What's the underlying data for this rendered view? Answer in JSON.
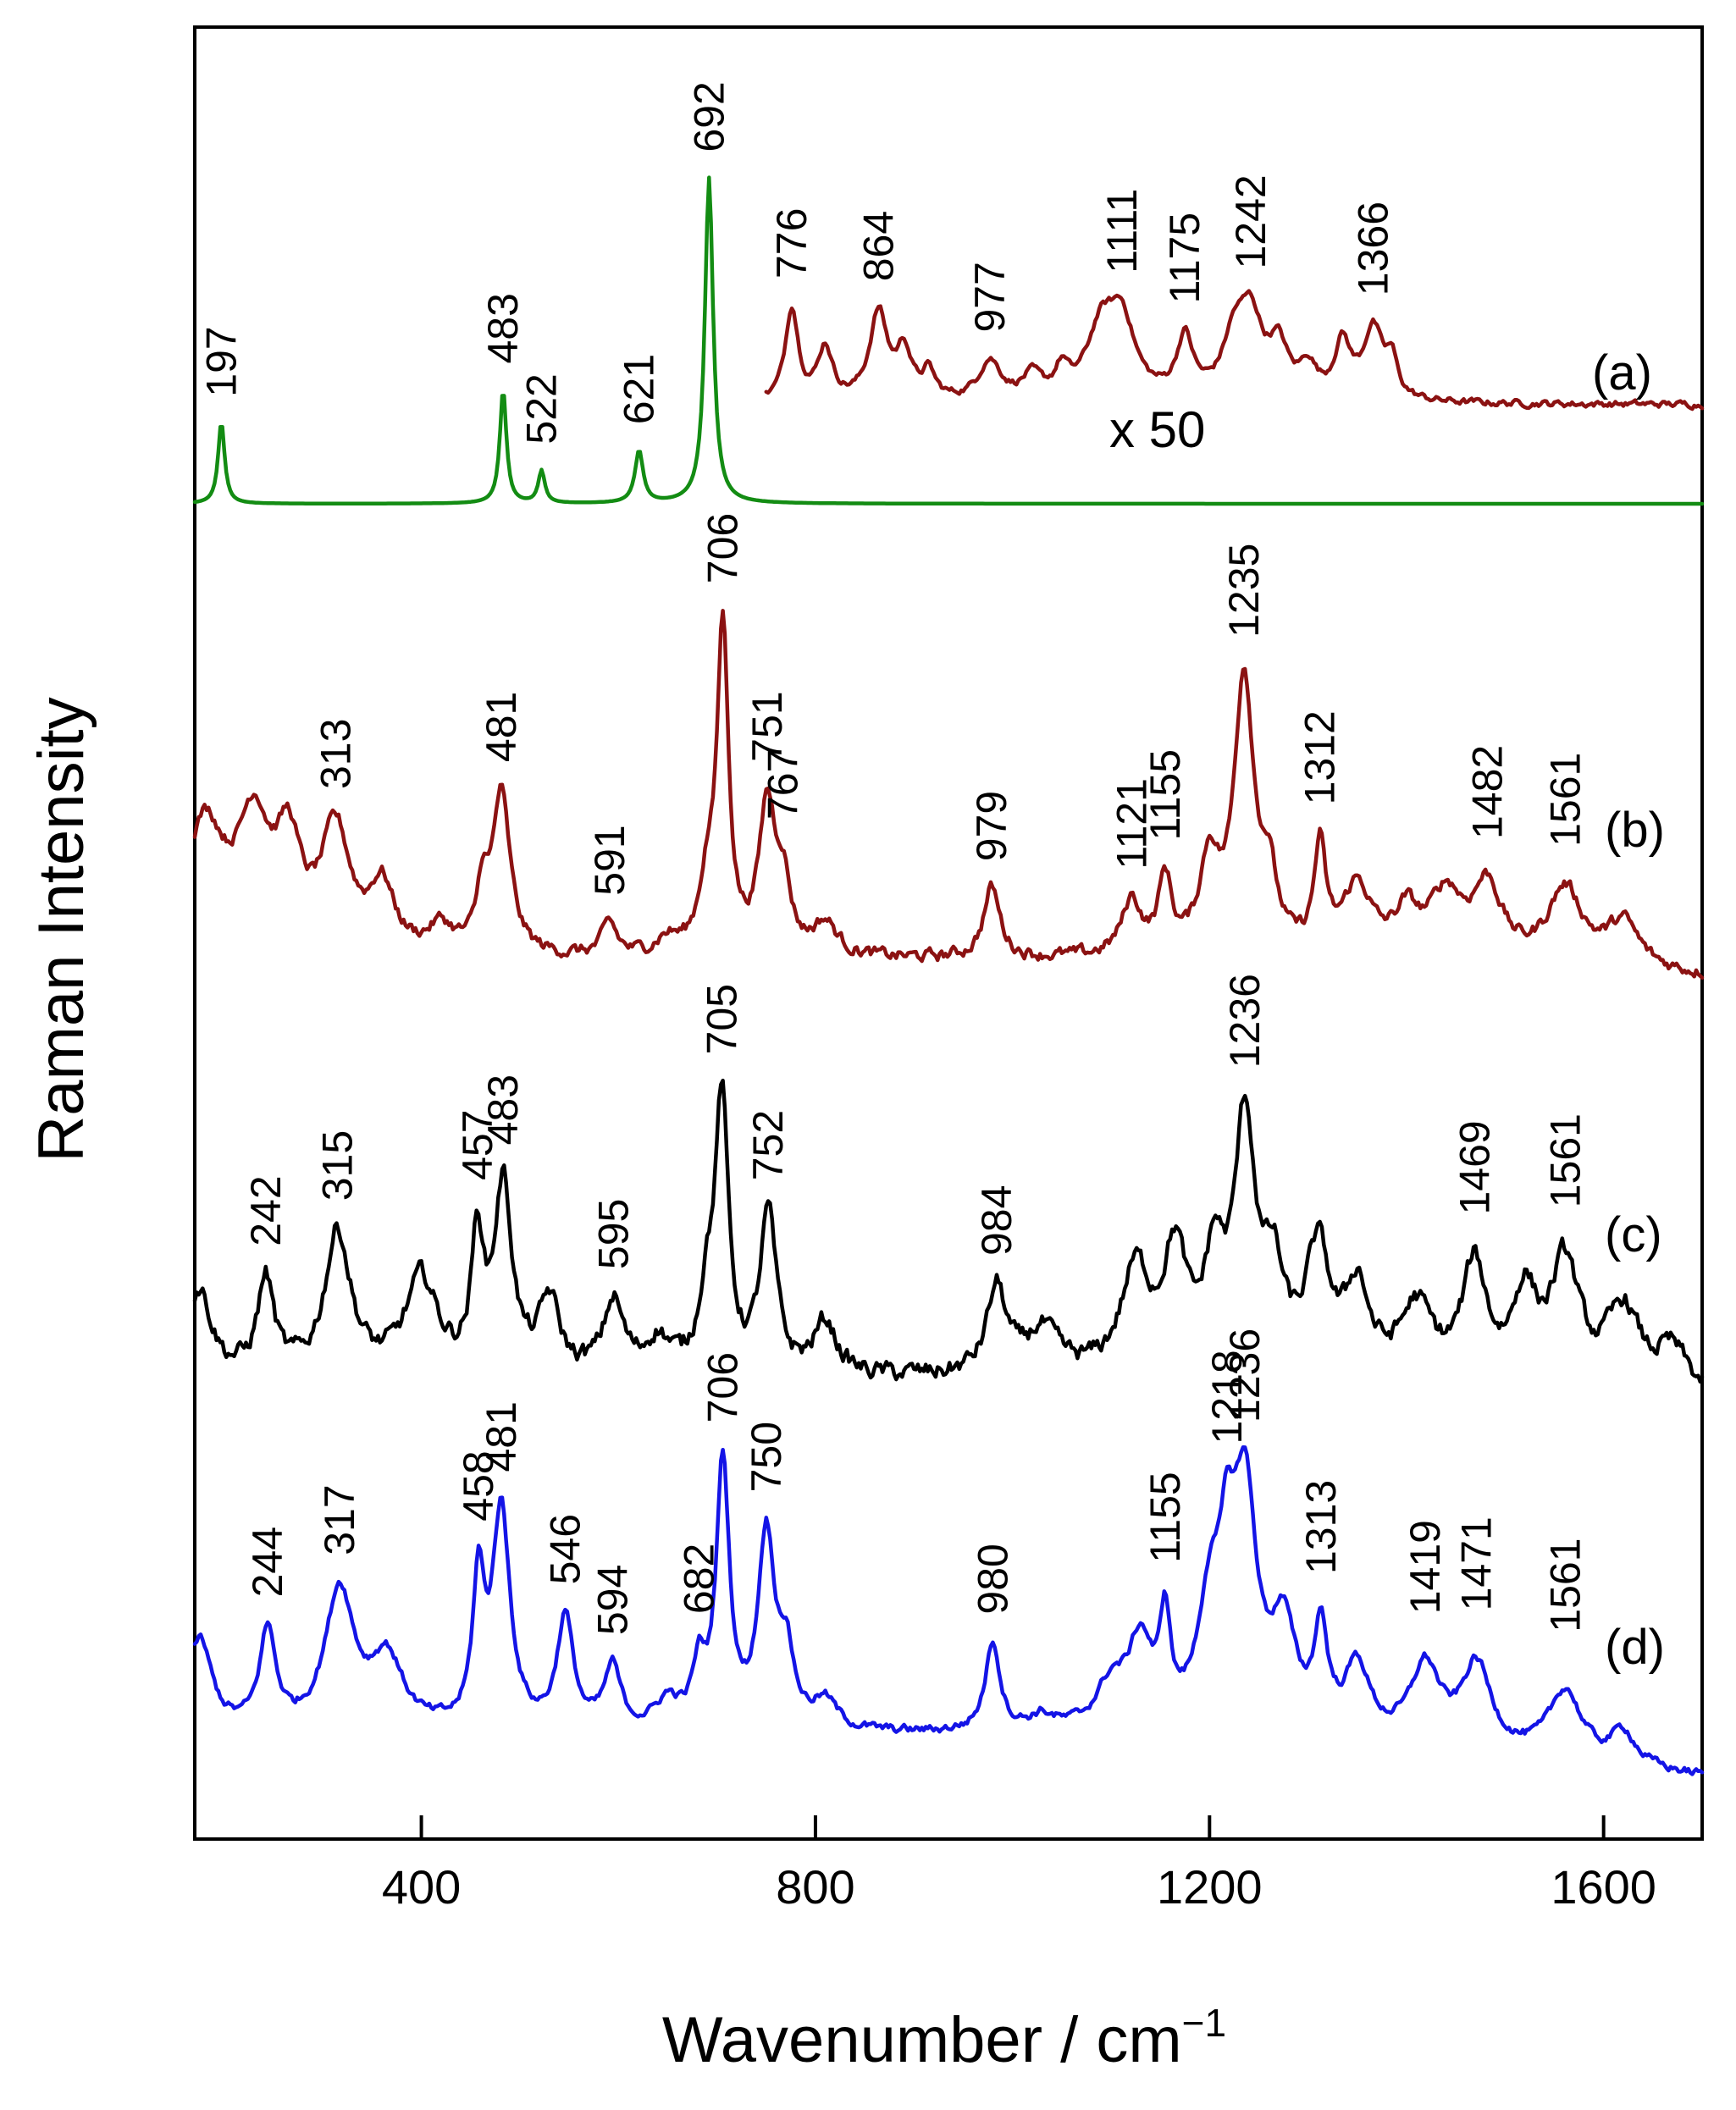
{
  "chart_data": {
    "type": "line",
    "title": "",
    "xlabel": "Wavenumber / cm",
    "xlabel_superscript": "−1",
    "ylabel": "Raman Intensity",
    "xlim": [
      170,
      1700
    ],
    "xticks": [
      400,
      800,
      1200,
      1600
    ],
    "xtick_labels": [
      "400",
      "800",
      "1200",
      "1600"
    ],
    "grid": false,
    "y_units": "arbitrary, stacked traces",
    "annotations": [
      {
        "text": "x 50",
        "near_trace": "(a)",
        "x": 1000
      }
    ],
    "series": [
      {
        "name": "(a)",
        "color": "#138c13",
        "baseline": 0.0,
        "peaks": [
          {
            "x": 197,
            "h": 0.25,
            "w": 4
          },
          {
            "x": 483,
            "h": 0.35,
            "w": 4
          },
          {
            "x": 522,
            "h": 0.1,
            "w": 4
          },
          {
            "x": 621,
            "h": 0.16,
            "w": 5
          },
          {
            "x": 692,
            "h": 1.0,
            "w": 5
          }
        ],
        "peak_labels": [
          "197",
          "483",
          "522",
          "621",
          "692"
        ],
        "xmin": 170,
        "xmax": 1700,
        "noise": 0.0
      },
      {
        "name": "(a) x 50",
        "color": "#8b1212",
        "baseline": 0.2,
        "peaks": [
          {
            "x": 776,
            "h": 0.43,
            "w": 8
          },
          {
            "x": 810,
            "h": 0.24,
            "w": 9
          },
          {
            "x": 864,
            "h": 0.4,
            "w": 11
          },
          {
            "x": 890,
            "h": 0.22,
            "w": 9
          },
          {
            "x": 915,
            "h": 0.12,
            "w": 8
          },
          {
            "x": 977,
            "h": 0.18,
            "w": 14
          },
          {
            "x": 1020,
            "h": 0.1,
            "w": 12
          },
          {
            "x": 1050,
            "h": 0.12,
            "w": 8
          },
          {
            "x": 1090,
            "h": 0.3,
            "w": 18
          },
          {
            "x": 1111,
            "h": 0.33,
            "w": 16
          },
          {
            "x": 1175,
            "h": 0.27,
            "w": 10
          },
          {
            "x": 1225,
            "h": 0.25,
            "w": 14
          },
          {
            "x": 1242,
            "h": 0.34,
            "w": 14
          },
          {
            "x": 1270,
            "h": 0.22,
            "w": 12
          },
          {
            "x": 1300,
            "h": 0.14,
            "w": 10
          },
          {
            "x": 1335,
            "h": 0.25,
            "w": 10
          },
          {
            "x": 1366,
            "h": 0.32,
            "w": 12
          },
          {
            "x": 1385,
            "h": 0.16,
            "w": 7
          }
        ],
        "peak_labels": [
          "776",
          "864",
          "977",
          "1111",
          "1175",
          "1242",
          "1366"
        ],
        "xmin": 750,
        "xmax": 1700,
        "noise": 0.012
      },
      {
        "name": "(b)",
        "color": "#8b1212",
        "baseline": 0.0,
        "peaks": [
          {
            "x": 180,
            "h": 0.4,
            "w": 25
          },
          {
            "x": 230,
            "h": 0.38,
            "w": 20
          },
          {
            "x": 265,
            "h": 0.3,
            "w": 15
          },
          {
            "x": 313,
            "h": 0.37,
            "w": 18
          },
          {
            "x": 360,
            "h": 0.2,
            "w": 15
          },
          {
            "x": 420,
            "h": 0.08,
            "w": 15
          },
          {
            "x": 462,
            "h": 0.18,
            "w": 6
          },
          {
            "x": 481,
            "h": 0.5,
            "w": 11
          },
          {
            "x": 591,
            "h": 0.1,
            "w": 9
          },
          {
            "x": 650,
            "h": 0.05,
            "w": 15
          },
          {
            "x": 690,
            "h": 0.2,
            "w": 10
          },
          {
            "x": 706,
            "h": 1.0,
            "w": 7
          },
          {
            "x": 751,
            "h": 0.45,
            "w": 10
          },
          {
            "x": 767,
            "h": 0.2,
            "w": 9
          },
          {
            "x": 810,
            "h": 0.1,
            "w": 15
          },
          {
            "x": 979,
            "h": 0.22,
            "w": 10
          },
          {
            "x": 1121,
            "h": 0.17,
            "w": 12
          },
          {
            "x": 1155,
            "h": 0.23,
            "w": 8
          },
          {
            "x": 1200,
            "h": 0.28,
            "w": 12
          },
          {
            "x": 1235,
            "h": 0.85,
            "w": 12
          },
          {
            "x": 1260,
            "h": 0.2,
            "w": 10
          },
          {
            "x": 1312,
            "h": 0.32,
            "w": 7
          },
          {
            "x": 1350,
            "h": 0.22,
            "w": 18
          },
          {
            "x": 1400,
            "h": 0.13,
            "w": 15
          },
          {
            "x": 1440,
            "h": 0.2,
            "w": 20
          },
          {
            "x": 1482,
            "h": 0.23,
            "w": 18
          },
          {
            "x": 1561,
            "h": 0.24,
            "w": 22
          },
          {
            "x": 1620,
            "h": 0.14,
            "w": 20
          }
        ],
        "peak_labels": [
          "313",
          "481",
          "591",
          "706",
          "751",
          "767",
          "979",
          "1121",
          "1155",
          "1235",
          "1312",
          "1482",
          "1561"
        ],
        "xmin": 170,
        "xmax": 1700,
        "noise": 0.015,
        "slope_end": -0.05
      },
      {
        "name": "(c)",
        "color": "#000000",
        "baseline": 0.0,
        "peaks": [
          {
            "x": 175,
            "h": 0.3,
            "w": 15
          },
          {
            "x": 242,
            "h": 0.33,
            "w": 10
          },
          {
            "x": 315,
            "h": 0.5,
            "w": 16
          },
          {
            "x": 400,
            "h": 0.33,
            "w": 20
          },
          {
            "x": 457,
            "h": 0.45,
            "w": 7
          },
          {
            "x": 483,
            "h": 0.65,
            "w": 11
          },
          {
            "x": 530,
            "h": 0.25,
            "w": 12
          },
          {
            "x": 595,
            "h": 0.25,
            "w": 12
          },
          {
            "x": 640,
            "h": 0.12,
            "w": 15
          },
          {
            "x": 690,
            "h": 0.25,
            "w": 10
          },
          {
            "x": 705,
            "h": 0.92,
            "w": 8
          },
          {
            "x": 752,
            "h": 0.55,
            "w": 10
          },
          {
            "x": 810,
            "h": 0.18,
            "w": 14
          },
          {
            "x": 984,
            "h": 0.3,
            "w": 12
          },
          {
            "x": 1030,
            "h": 0.15,
            "w": 20
          },
          {
            "x": 1125,
            "h": 0.35,
            "w": 18
          },
          {
            "x": 1165,
            "h": 0.4,
            "w": 14
          },
          {
            "x": 1205,
            "h": 0.35,
            "w": 12
          },
          {
            "x": 1236,
            "h": 0.85,
            "w": 13
          },
          {
            "x": 1265,
            "h": 0.3,
            "w": 12
          },
          {
            "x": 1310,
            "h": 0.42,
            "w": 15
          },
          {
            "x": 1350,
            "h": 0.3,
            "w": 14
          },
          {
            "x": 1410,
            "h": 0.25,
            "w": 20
          },
          {
            "x": 1469,
            "h": 0.4,
            "w": 15
          },
          {
            "x": 1520,
            "h": 0.3,
            "w": 15
          },
          {
            "x": 1561,
            "h": 0.42,
            "w": 18
          },
          {
            "x": 1620,
            "h": 0.28,
            "w": 20
          },
          {
            "x": 1670,
            "h": 0.15,
            "w": 20
          }
        ],
        "peak_labels": [
          "242",
          "315",
          "457",
          "483",
          "595",
          "705",
          "752",
          "984",
          "1236",
          "1469",
          "1561"
        ],
        "xmin": 170,
        "xmax": 1700,
        "noise": 0.025,
        "slope_end": -0.08
      },
      {
        "name": "(d)",
        "color": "#1414e6",
        "baseline": 0.0,
        "peaks": [
          {
            "x": 175,
            "h": 0.33,
            "w": 15
          },
          {
            "x": 244,
            "h": 0.35,
            "w": 10
          },
          {
            "x": 317,
            "h": 0.5,
            "w": 18
          },
          {
            "x": 365,
            "h": 0.25,
            "w": 20
          },
          {
            "x": 458,
            "h": 0.5,
            "w": 7
          },
          {
            "x": 481,
            "h": 0.78,
            "w": 11
          },
          {
            "x": 546,
            "h": 0.4,
            "w": 10
          },
          {
            "x": 594,
            "h": 0.22,
            "w": 10
          },
          {
            "x": 650,
            "h": 0.1,
            "w": 15
          },
          {
            "x": 682,
            "h": 0.2,
            "w": 8
          },
          {
            "x": 706,
            "h": 0.95,
            "w": 8
          },
          {
            "x": 750,
            "h": 0.68,
            "w": 10
          },
          {
            "x": 770,
            "h": 0.25,
            "w": 10
          },
          {
            "x": 810,
            "h": 0.1,
            "w": 15
          },
          {
            "x": 980,
            "h": 0.32,
            "w": 9
          },
          {
            "x": 1030,
            "h": 0.05,
            "w": 15
          },
          {
            "x": 1100,
            "h": 0.15,
            "w": 18
          },
          {
            "x": 1130,
            "h": 0.3,
            "w": 15
          },
          {
            "x": 1155,
            "h": 0.35,
            "w": 6
          },
          {
            "x": 1200,
            "h": 0.4,
            "w": 14
          },
          {
            "x": 1218,
            "h": 0.45,
            "w": 10
          },
          {
            "x": 1236,
            "h": 0.8,
            "w": 14
          },
          {
            "x": 1275,
            "h": 0.35,
            "w": 15
          },
          {
            "x": 1313,
            "h": 0.35,
            "w": 8
          },
          {
            "x": 1350,
            "h": 0.25,
            "w": 15
          },
          {
            "x": 1419,
            "h": 0.28,
            "w": 18
          },
          {
            "x": 1471,
            "h": 0.3,
            "w": 18
          },
          {
            "x": 1561,
            "h": 0.25,
            "w": 20
          },
          {
            "x": 1620,
            "h": 0.12,
            "w": 15
          }
        ],
        "peak_labels": [
          "244",
          "317",
          "458",
          "481",
          "546",
          "594",
          "682",
          "706",
          "750",
          "980",
          "1155",
          "1218",
          "1236",
          "1313",
          "1419",
          "1471",
          "1561"
        ],
        "xmin": 170,
        "xmax": 1700,
        "noise": 0.012,
        "slope_end": -0.15
      }
    ]
  }
}
